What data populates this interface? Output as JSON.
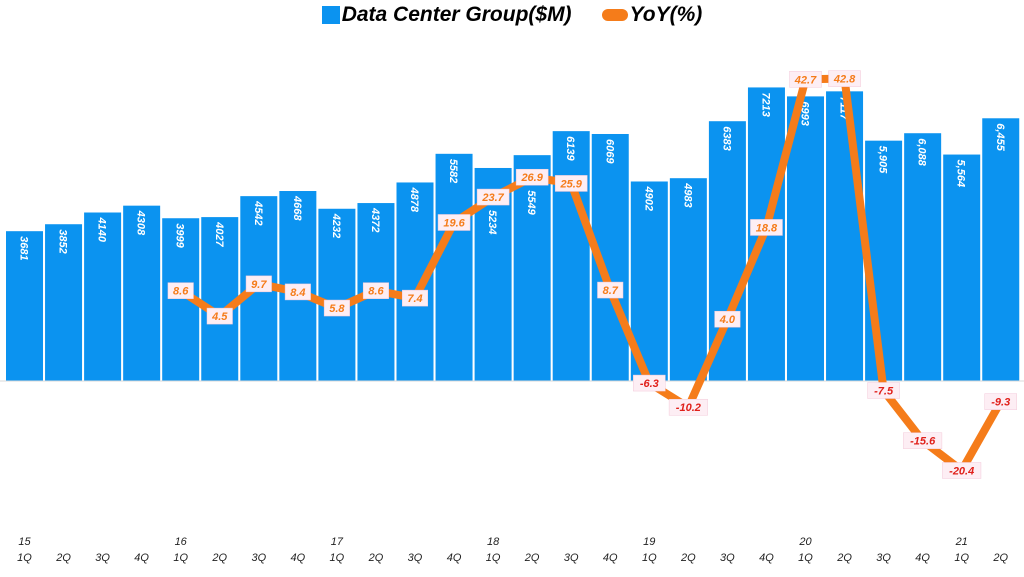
{
  "chart_data": {
    "type": "bar+line",
    "title": "",
    "legend": [
      "Data Center Group($M)",
      "YoY(%)"
    ],
    "legend_position": "top-center",
    "categories": [
      "1Q",
      "2Q",
      "3Q",
      "4Q",
      "1Q",
      "2Q",
      "3Q",
      "4Q",
      "1Q",
      "2Q",
      "3Q",
      "4Q",
      "1Q",
      "2Q",
      "3Q",
      "4Q",
      "1Q",
      "2Q",
      "3Q",
      "4Q",
      "1Q",
      "2Q",
      "3Q",
      "4Q",
      "1Q",
      "2Q"
    ],
    "years": [
      "15",
      "",
      "",
      "",
      "16",
      "",
      "",
      "",
      "17",
      "",
      "",
      "",
      "18",
      "",
      "",
      "",
      "19",
      "",
      "",
      "",
      "20",
      "",
      "",
      "",
      "21",
      ""
    ],
    "series": [
      {
        "name": "Data Center Group($M)",
        "type": "bar",
        "color": "#0b93f0",
        "values": [
          3681,
          3852,
          4140,
          4308,
          3999,
          4027,
          4542,
          4668,
          4232,
          4372,
          4878,
          5582,
          5234,
          5549,
          6139,
          6069,
          4902,
          4983,
          6383,
          7213,
          6993,
          7117,
          5905,
          6088,
          5564,
          6455
        ],
        "labels": [
          "3681",
          "3852",
          "4140",
          "4308",
          "3999",
          "4027",
          "4542",
          "4668",
          "4232",
          "4372",
          "4878",
          "5582",
          "5234",
          "5549",
          "6139",
          "6069",
          "4902",
          "4983",
          "6383",
          "7213",
          "6993",
          "7117",
          "5,905",
          "6,088",
          "5,564",
          "6,455"
        ]
      },
      {
        "name": "YoY(%)",
        "type": "line",
        "color": "#f57c1a",
        "values": [
          null,
          null,
          null,
          null,
          8.6,
          4.5,
          9.7,
          8.4,
          5.8,
          8.6,
          7.4,
          19.6,
          23.7,
          26.9,
          25.9,
          8.7,
          -6.3,
          -10.2,
          4.0,
          18.8,
          42.7,
          42.8,
          -7.5,
          -15.6,
          -20.4,
          -9.3
        ],
        "labels": [
          "",
          "",
          "",
          "",
          "8.6",
          "4.5",
          "9.7",
          "8.4",
          "5.8",
          "8.6",
          "7.4",
          "19.6",
          "23.7",
          "26.9",
          "25.9",
          "8.7",
          "-6.3",
          "-10.2",
          "4.0",
          "18.8",
          "42.7",
          "42.8",
          "-7.5",
          "-15.6",
          "-20.4",
          "-9.3"
        ]
      }
    ],
    "grid": false
  }
}
